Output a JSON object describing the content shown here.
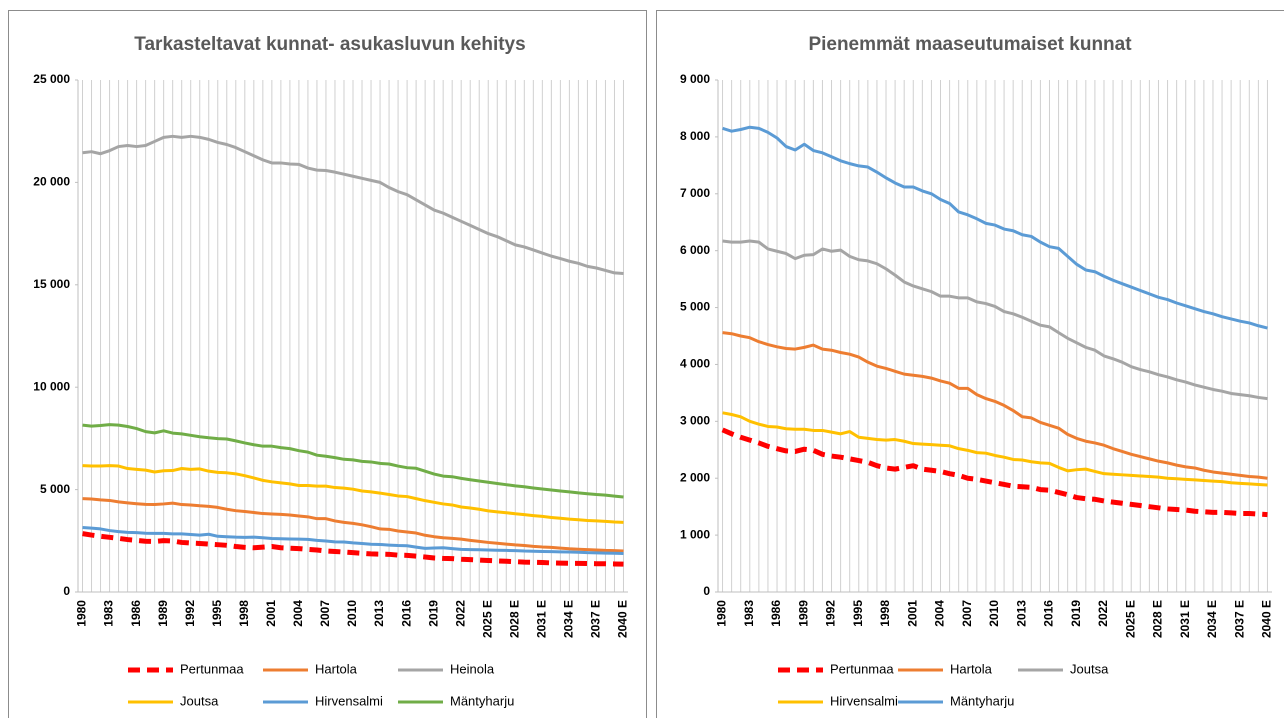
{
  "chart_data": [
    {
      "type": "line",
      "title": "Tarkasteltavat kunnat- asukasluvun kehitys",
      "legend": "bottom",
      "grid": false,
      "vertical_grid": true,
      "categories": [
        "1980",
        null,
        null,
        "1983",
        null,
        null,
        "1986",
        null,
        null,
        "1989",
        null,
        null,
        "1992",
        null,
        null,
        "1995",
        null,
        null,
        "1998",
        null,
        null,
        "2001",
        null,
        null,
        "2004",
        null,
        null,
        "2007",
        null,
        null,
        "2010",
        null,
        null,
        "2013",
        null,
        null,
        "2016",
        null,
        null,
        "2019",
        null,
        null,
        "2022",
        null,
        null,
        "2025 E",
        null,
        null,
        "2028 E",
        null,
        null,
        "2031 E",
        null,
        null,
        "2034 E",
        null,
        null,
        "2037 E",
        null,
        null,
        "2040 E"
      ],
      "ylim": [
        0,
        25000
      ],
      "yticks": [
        0,
        {
          "value": 5000,
          "label": "5 000"
        },
        {
          "value": 10000,
          "label": "10 000"
        },
        {
          "value": 15000,
          "label": "15 000"
        },
        {
          "value": 20000,
          "label": "20 000"
        },
        {
          "value": 25000,
          "label": "25 000"
        }
      ],
      "series": [
        {
          "name": "Pertunmaa",
          "color": "#ff0000",
          "line_style": "dashed",
          "values": [
            2850,
            2780,
            2720,
            2670,
            2620,
            2560,
            2520,
            2480,
            2470,
            2510,
            2490,
            2420,
            2390,
            2370,
            2340,
            2310,
            2280,
            2220,
            2180,
            2160,
            2190,
            2220,
            2160,
            2140,
            2120,
            2080,
            2050,
            2000,
            1980,
            1950,
            1920,
            1890,
            1860,
            1850,
            1840,
            1800,
            1790,
            1750,
            1710,
            1660,
            1640,
            1630,
            1600,
            1580,
            1560,
            1540,
            1520,
            1500,
            1480,
            1460,
            1450,
            1440,
            1420,
            1410,
            1400,
            1400,
            1390,
            1380,
            1380,
            1370,
            1360
          ]
        },
        {
          "name": "Hartola",
          "color": "#ed7d31",
          "values": [
            4560,
            4540,
            4500,
            4470,
            4400,
            4350,
            4310,
            4280,
            4270,
            4300,
            4340,
            4270,
            4250,
            4210,
            4180,
            4130,
            4040,
            3970,
            3930,
            3880,
            3830,
            3810,
            3790,
            3760,
            3710,
            3670,
            3580,
            3580,
            3470,
            3400,
            3350,
            3280,
            3190,
            3080,
            3060,
            2980,
            2930,
            2880,
            2770,
            2700,
            2650,
            2620,
            2580,
            2520,
            2470,
            2420,
            2380,
            2340,
            2300,
            2270,
            2230,
            2200,
            2180,
            2140,
            2110,
            2090,
            2070,
            2050,
            2030,
            2020,
            2000
          ]
        },
        {
          "name": "Heinola",
          "color": "#a5a5a5",
          "values": [
            21450,
            21500,
            21400,
            21550,
            21750,
            21800,
            21750,
            21800,
            22000,
            22200,
            22250,
            22200,
            22250,
            22200,
            22100,
            21950,
            21850,
            21700,
            21500,
            21300,
            21100,
            20950,
            20950,
            20900,
            20880,
            20700,
            20600,
            20580,
            20500,
            20400,
            20300,
            20200,
            20100,
            20000,
            19750,
            19550,
            19400,
            19150,
            18900,
            18650,
            18500,
            18300,
            18100,
            17900,
            17700,
            17500,
            17350,
            17150,
            16950,
            16850,
            16700,
            16550,
            16400,
            16280,
            16150,
            16050,
            15900,
            15820,
            15700,
            15580,
            15550
          ]
        },
        {
          "name": "Joutsa",
          "color": "#ffc000",
          "values": [
            6170,
            6150,
            6150,
            6170,
            6150,
            6030,
            5990,
            5950,
            5860,
            5920,
            5930,
            6030,
            5990,
            6010,
            5900,
            5840,
            5820,
            5770,
            5680,
            5570,
            5450,
            5380,
            5330,
            5280,
            5200,
            5200,
            5170,
            5170,
            5100,
            5070,
            5020,
            4930,
            4890,
            4830,
            4760,
            4690,
            4660,
            4560,
            4460,
            4380,
            4300,
            4250,
            4150,
            4100,
            4040,
            3960,
            3910,
            3870,
            3820,
            3780,
            3730,
            3690,
            3640,
            3600,
            3560,
            3530,
            3490,
            3470,
            3450,
            3420,
            3400
          ]
        },
        {
          "name": "Hirvensalmi",
          "color": "#5b9bd5",
          "values": [
            3150,
            3120,
            3080,
            3000,
            2950,
            2910,
            2900,
            2870,
            2860,
            2860,
            2840,
            2840,
            2810,
            2780,
            2820,
            2720,
            2700,
            2680,
            2670,
            2680,
            2650,
            2610,
            2600,
            2590,
            2580,
            2570,
            2520,
            2490,
            2450,
            2440,
            2400,
            2370,
            2330,
            2320,
            2290,
            2270,
            2260,
            2190,
            2130,
            2150,
            2160,
            2120,
            2080,
            2070,
            2060,
            2050,
            2040,
            2030,
            2020,
            2000,
            1990,
            1980,
            1970,
            1960,
            1950,
            1940,
            1920,
            1910,
            1900,
            1890,
            1880
          ]
        },
        {
          "name": "Mäntyharju",
          "color": "#70ad47",
          "values": [
            8150,
            8100,
            8130,
            8170,
            8150,
            8080,
            7980,
            7830,
            7770,
            7870,
            7760,
            7720,
            7650,
            7580,
            7530,
            7490,
            7470,
            7380,
            7280,
            7190,
            7120,
            7120,
            7050,
            7000,
            6900,
            6830,
            6680,
            6630,
            6560,
            6480,
            6450,
            6380,
            6350,
            6280,
            6250,
            6150,
            6070,
            6040,
            5900,
            5760,
            5660,
            5630,
            5550,
            5480,
            5420,
            5360,
            5300,
            5240,
            5180,
            5140,
            5080,
            5030,
            4980,
            4930,
            4890,
            4840,
            4800,
            4760,
            4730,
            4680,
            4640
          ]
        }
      ]
    },
    {
      "type": "line",
      "title": "Pienemmät maaseutumaiset kunnat",
      "legend": "bottom",
      "grid": false,
      "vertical_grid": true,
      "categories": [
        "1980",
        null,
        null,
        "1983",
        null,
        null,
        "1986",
        null,
        null,
        "1989",
        null,
        null,
        "1992",
        null,
        null,
        "1995",
        null,
        null,
        "1998",
        null,
        null,
        "2001",
        null,
        null,
        "2004",
        null,
        null,
        "2007",
        null,
        null,
        "2010",
        null,
        null,
        "2013",
        null,
        null,
        "2016",
        null,
        null,
        "2019",
        null,
        null,
        "2022",
        null,
        null,
        "2025 E",
        null,
        null,
        "2028 E",
        null,
        null,
        "2031 E",
        null,
        null,
        "2034 E",
        null,
        null,
        "2037 E",
        null,
        null,
        "2040 E"
      ],
      "ylim": [
        0,
        9000
      ],
      "yticks": [
        0,
        {
          "value": 1000,
          "label": "1 000"
        },
        {
          "value": 2000,
          "label": "2 000"
        },
        {
          "value": 3000,
          "label": "3 000"
        },
        {
          "value": 4000,
          "label": "4 000"
        },
        {
          "value": 5000,
          "label": "5 000"
        },
        {
          "value": 6000,
          "label": "6 000"
        },
        {
          "value": 7000,
          "label": "7 000"
        },
        {
          "value": 8000,
          "label": "8 000"
        },
        {
          "value": 9000,
          "label": "9 000"
        }
      ],
      "series": [
        {
          "name": "Pertunmaa",
          "color": "#ff0000",
          "line_style": "dashed",
          "values": [
            2850,
            2780,
            2720,
            2670,
            2620,
            2560,
            2520,
            2480,
            2470,
            2510,
            2490,
            2420,
            2390,
            2370,
            2340,
            2310,
            2280,
            2220,
            2180,
            2160,
            2190,
            2220,
            2160,
            2140,
            2120,
            2080,
            2050,
            2000,
            1980,
            1950,
            1920,
            1890,
            1860,
            1850,
            1840,
            1800,
            1790,
            1750,
            1710,
            1660,
            1640,
            1630,
            1600,
            1580,
            1560,
            1540,
            1520,
            1500,
            1480,
            1460,
            1450,
            1440,
            1420,
            1410,
            1400,
            1400,
            1390,
            1380,
            1380,
            1370,
            1360
          ]
        },
        {
          "name": "Hartola",
          "color": "#ed7d31",
          "values": [
            4560,
            4540,
            4500,
            4470,
            4400,
            4350,
            4310,
            4280,
            4270,
            4300,
            4340,
            4270,
            4250,
            4210,
            4180,
            4130,
            4040,
            3970,
            3930,
            3880,
            3830,
            3810,
            3790,
            3760,
            3710,
            3670,
            3580,
            3580,
            3470,
            3400,
            3350,
            3280,
            3190,
            3080,
            3060,
            2980,
            2930,
            2880,
            2770,
            2700,
            2650,
            2620,
            2580,
            2520,
            2470,
            2420,
            2380,
            2340,
            2300,
            2270,
            2230,
            2200,
            2180,
            2140,
            2110,
            2090,
            2070,
            2050,
            2030,
            2020,
            2000
          ]
        },
        {
          "name": "Joutsa",
          "color": "#a5a5a5",
          "values": [
            6170,
            6150,
            6150,
            6170,
            6150,
            6030,
            5990,
            5950,
            5860,
            5920,
            5930,
            6030,
            5990,
            6010,
            5900,
            5840,
            5820,
            5770,
            5680,
            5570,
            5450,
            5380,
            5330,
            5280,
            5200,
            5200,
            5170,
            5170,
            5100,
            5070,
            5020,
            4930,
            4890,
            4830,
            4760,
            4690,
            4660,
            4560,
            4460,
            4380,
            4300,
            4250,
            4150,
            4100,
            4040,
            3960,
            3910,
            3870,
            3820,
            3780,
            3730,
            3690,
            3640,
            3600,
            3560,
            3530,
            3490,
            3470,
            3450,
            3420,
            3400
          ]
        },
        {
          "name": "Hirvensalmi",
          "color": "#ffc000",
          "values": [
            3150,
            3120,
            3080,
            3000,
            2950,
            2910,
            2900,
            2870,
            2860,
            2860,
            2840,
            2840,
            2810,
            2780,
            2820,
            2720,
            2700,
            2680,
            2670,
            2680,
            2650,
            2610,
            2600,
            2590,
            2580,
            2570,
            2520,
            2490,
            2450,
            2440,
            2400,
            2370,
            2330,
            2320,
            2290,
            2270,
            2260,
            2190,
            2130,
            2150,
            2160,
            2120,
            2080,
            2070,
            2060,
            2050,
            2040,
            2030,
            2020,
            2000,
            1990,
            1980,
            1970,
            1960,
            1950,
            1940,
            1920,
            1910,
            1900,
            1890,
            1880
          ]
        },
        {
          "name": "Mäntyharju",
          "color": "#5b9bd5",
          "values": [
            8150,
            8100,
            8130,
            8170,
            8150,
            8080,
            7980,
            7830,
            7770,
            7870,
            7760,
            7720,
            7650,
            7580,
            7530,
            7490,
            7470,
            7380,
            7280,
            7190,
            7120,
            7120,
            7050,
            7000,
            6900,
            6830,
            6680,
            6630,
            6560,
            6480,
            6450,
            6380,
            6350,
            6280,
            6250,
            6150,
            6070,
            6040,
            5900,
            5760,
            5660,
            5630,
            5550,
            5480,
            5420,
            5360,
            5300,
            5240,
            5180,
            5140,
            5080,
            5030,
            4980,
            4930,
            4890,
            4840,
            4800,
            4760,
            4730,
            4680,
            4640
          ]
        }
      ]
    }
  ]
}
